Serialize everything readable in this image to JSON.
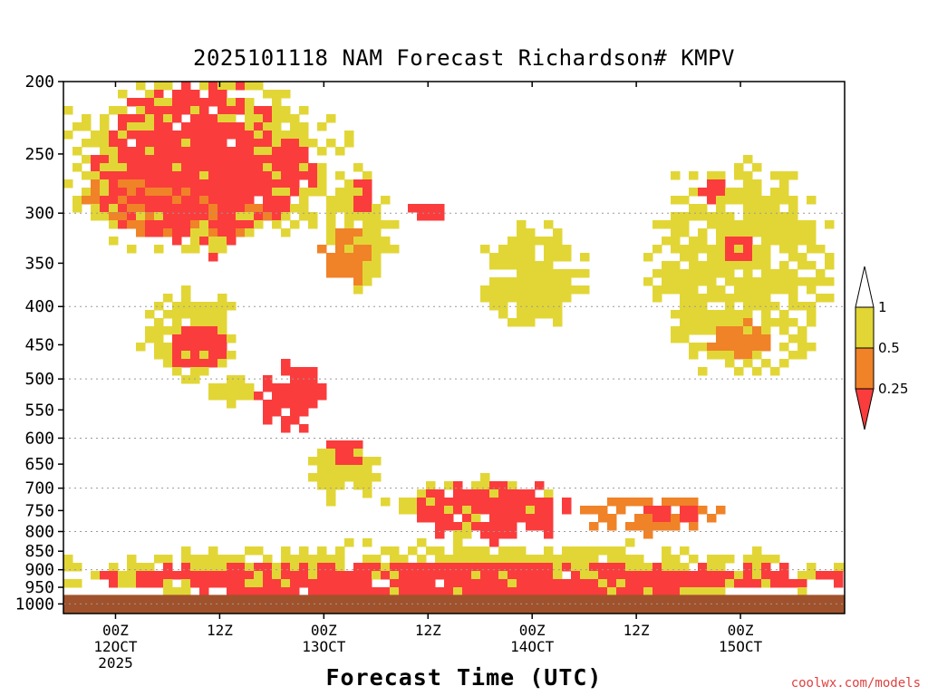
{
  "chart_data": {
    "type": "heatmap",
    "title": "2025101118 NAM Forecast Richardson# KMPV",
    "xlabel": "Forecast Time (UTC)",
    "ylabel": "",
    "y_axis": {
      "scale": "log-pressure",
      "inverted": true,
      "range_hpa": [
        1030,
        200
      ],
      "ticks": [
        200,
        250,
        300,
        350,
        400,
        450,
        500,
        550,
        600,
        650,
        700,
        750,
        800,
        850,
        900,
        950,
        1000
      ],
      "dotted_gridlines": [
        300,
        400,
        500,
        600,
        700,
        800,
        900,
        1000
      ]
    },
    "x_axis": {
      "range_hours_utc": [
        "2025-10-11 18Z",
        "2025-10-15 12Z"
      ],
      "ticks": [
        {
          "time": "2025-10-12 00Z",
          "lines": [
            "00Z",
            "12OCT",
            "2025"
          ]
        },
        {
          "time": "2025-10-12 12Z",
          "lines": [
            "12Z"
          ]
        },
        {
          "time": "2025-10-13 00Z",
          "lines": [
            "00Z",
            "13OCT"
          ]
        },
        {
          "time": "2025-10-13 12Z",
          "lines": [
            "12Z"
          ]
        },
        {
          "time": "2025-10-14 00Z",
          "lines": [
            "00Z",
            "14OCT"
          ]
        },
        {
          "time": "2025-10-14 12Z",
          "lines": [
            "12Z"
          ]
        },
        {
          "time": "2025-10-15 00Z",
          "lines": [
            "00Z",
            "15OCT"
          ]
        }
      ]
    },
    "colorbar": {
      "levels": [
        {
          "label": "",
          "range": "> 1",
          "color": "#ffffff"
        },
        {
          "label": "1",
          "range": "0.5 - 1",
          "color": "#e2d636"
        },
        {
          "label": "0.5",
          "range": "0.25 - 0.5",
          "color": "#f08228"
        },
        {
          "label": "0.25",
          "range": "< 0.25",
          "color": "#fa3c3c"
        }
      ]
    },
    "surface_color": "#a0522d",
    "regions": [
      {
        "bin": 1,
        "t0": "2025-10-11 18Z",
        "t1": "2025-10-13 02Z",
        "p_top": 200,
        "p_bot": 330
      },
      {
        "bin": 2,
        "t0": "2025-10-11 21Z",
        "t1": "2025-10-12 18Z",
        "p_top": 260,
        "p_bot": 320
      },
      {
        "bin": 3,
        "t0": "2025-10-11 23Z",
        "t1": "2025-10-12 18Z",
        "p_top": 200,
        "p_bot": 330
      },
      {
        "bin": 3,
        "t0": "2025-10-12 15Z",
        "t1": "2025-10-12 23Z",
        "p_top": 240,
        "p_bot": 300
      },
      {
        "bin": 1,
        "t0": "2025-10-13 00Z",
        "t1": "2025-10-13 08Z",
        "p_top": 270,
        "p_bot": 380
      },
      {
        "bin": 2,
        "t0": "2025-10-13 00Z",
        "t1": "2025-10-13 06Z",
        "p_top": 320,
        "p_bot": 370
      },
      {
        "bin": 3,
        "t0": "2025-10-13 03Z",
        "t1": "2025-10-13 06Z",
        "p_top": 270,
        "p_bot": 300
      },
      {
        "bin": 3,
        "t0": "2025-10-13 10Z",
        "t1": "2025-10-13 14Z",
        "p_top": 290,
        "p_bot": 310
      },
      {
        "bin": 1,
        "t0": "2025-10-13 18Z",
        "t1": "2025-10-14 06Z",
        "p_top": 310,
        "p_bot": 420
      },
      {
        "bin": 1,
        "t0": "2025-10-14 14Z",
        "t1": "2025-10-15 10Z",
        "p_top": 260,
        "p_bot": 480
      },
      {
        "bin": 3,
        "t0": "2025-10-14 19Z",
        "t1": "2025-10-14 22Z",
        "p_top": 270,
        "p_bot": 290
      },
      {
        "bin": 2,
        "t0": "2025-10-14 20Z",
        "t1": "2025-10-15 04Z",
        "p_top": 420,
        "p_bot": 470
      },
      {
        "bin": 3,
        "t0": "2025-10-14 22Z",
        "t1": "2025-10-15 01Z",
        "p_top": 320,
        "p_bot": 350
      },
      {
        "bin": 1,
        "t0": "2025-10-12 03Z",
        "t1": "2025-10-12 14Z",
        "p_top": 380,
        "p_bot": 500
      },
      {
        "bin": 3,
        "t0": "2025-10-12 06Z",
        "t1": "2025-10-12 13Z",
        "p_top": 420,
        "p_bot": 480
      },
      {
        "bin": 3,
        "t0": "2025-10-12 16Z",
        "t1": "2025-10-13 00Z",
        "p_top": 480,
        "p_bot": 580
      },
      {
        "bin": 1,
        "t0": "2025-10-12 10Z",
        "t1": "2025-10-12 16Z",
        "p_top": 500,
        "p_bot": 540
      },
      {
        "bin": 1,
        "t0": "2025-10-12 22Z",
        "t1": "2025-10-13 06Z",
        "p_top": 600,
        "p_bot": 720
      },
      {
        "bin": 3,
        "t0": "2025-10-13 00Z",
        "t1": "2025-10-13 05Z",
        "p_top": 600,
        "p_bot": 660
      },
      {
        "bin": 1,
        "t0": "2025-10-13 08Z",
        "t1": "2025-10-14 02Z",
        "p_top": 680,
        "p_bot": 800
      },
      {
        "bin": 3,
        "t0": "2025-10-13 10Z",
        "t1": "2025-10-14 05Z",
        "p_top": 690,
        "p_bot": 820
      },
      {
        "bin": 2,
        "t0": "2025-10-14 06Z",
        "t1": "2025-10-14 22Z",
        "p_top": 720,
        "p_bot": 800
      },
      {
        "bin": 3,
        "t0": "2025-10-14 11Z",
        "t1": "2025-10-14 20Z",
        "p_top": 740,
        "p_bot": 780
      },
      {
        "bin": 1,
        "t0": "2025-10-11 18Z",
        "t1": "2025-10-15 12Z",
        "p_top": 835,
        "p_bot": 990
      },
      {
        "bin": 3,
        "t0": "2025-10-11 22Z",
        "t1": "2025-10-15 12Z",
        "p_top": 880,
        "p_bot": 975
      }
    ]
  },
  "credit": "coolwx.com/models"
}
